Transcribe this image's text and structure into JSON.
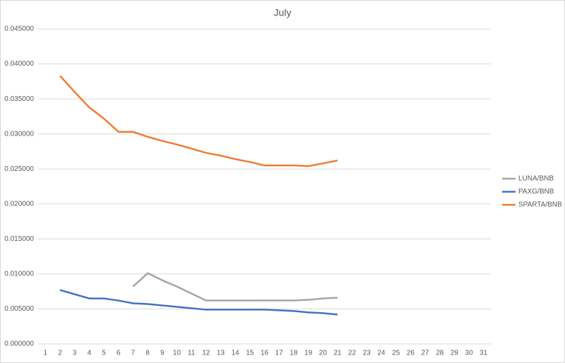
{
  "chart_data": {
    "type": "line",
    "title": "July",
    "categories": [
      "1",
      "2",
      "3",
      "4",
      "5",
      "6",
      "7",
      "8",
      "9",
      "10",
      "11",
      "12",
      "13",
      "14",
      "15",
      "16",
      "17",
      "18",
      "19",
      "20",
      "21",
      "22",
      "23",
      "24",
      "25",
      "26",
      "27",
      "28",
      "29",
      "30",
      "31"
    ],
    "series": [
      {
        "name": "LUNA/BNB",
        "color": "#a5a5a5",
        "values": [
          null,
          null,
          null,
          null,
          null,
          null,
          0.0082,
          0.0101,
          0.0091,
          0.0082,
          0.0072,
          0.0062,
          0.0062,
          0.0062,
          0.0062,
          0.0062,
          0.0062,
          0.0062,
          0.0063,
          0.0065,
          0.0066,
          null,
          null,
          null,
          null,
          null,
          null,
          null,
          null,
          null,
          null
        ]
      },
      {
        "name": "PAXG/BNB",
        "color": "#4472c4",
        "values": [
          null,
          0.0077,
          0.0071,
          0.0065,
          0.0065,
          0.0062,
          0.0058,
          0.0057,
          0.0055,
          0.0053,
          0.0051,
          0.0049,
          0.0049,
          0.0049,
          0.0049,
          0.0049,
          0.0048,
          0.0047,
          0.0045,
          0.0044,
          0.0042,
          null,
          null,
          null,
          null,
          null,
          null,
          null,
          null,
          null,
          null
        ]
      },
      {
        "name": "SPARTA/BNB",
        "color": "#ed7d31",
        "values": [
          null,
          0.0383,
          0.036,
          0.0338,
          0.0322,
          0.0303,
          0.0303,
          0.0296,
          0.029,
          0.0285,
          0.0279,
          0.0273,
          0.0269,
          0.0264,
          0.026,
          0.0255,
          0.0255,
          0.0255,
          0.0254,
          0.0258,
          0.0262,
          null,
          null,
          null,
          null,
          null,
          null,
          null,
          null,
          null,
          null
        ]
      }
    ],
    "ylim": [
      0,
      0.045
    ],
    "yticks": [
      {
        "value": 0,
        "label": "0.000000"
      },
      {
        "value": 0.005,
        "label": "0.005000"
      },
      {
        "value": 0.01,
        "label": "0.010000"
      },
      {
        "value": 0.015,
        "label": "0.015000"
      },
      {
        "value": 0.02,
        "label": "0.020000"
      },
      {
        "value": 0.025,
        "label": "0.025000"
      },
      {
        "value": 0.03,
        "label": "0.030000"
      },
      {
        "value": 0.035,
        "label": "0.035000"
      },
      {
        "value": 0.04,
        "label": "0.040000"
      },
      {
        "value": 0.045,
        "label": "0.045000"
      }
    ],
    "grid": true,
    "legend": "right"
  }
}
